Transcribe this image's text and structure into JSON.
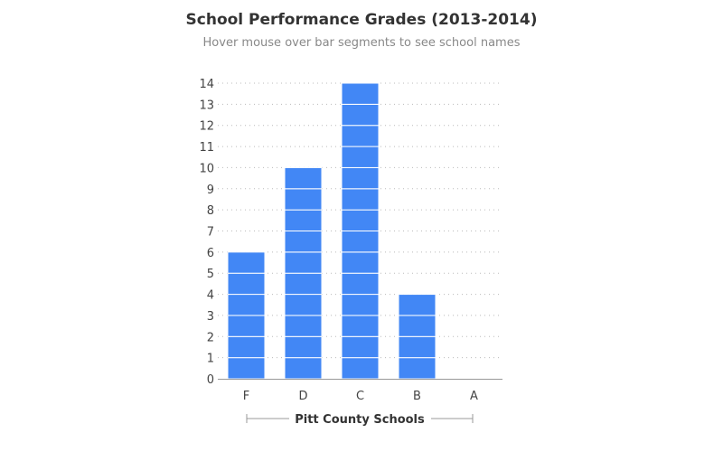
{
  "chart_data": {
    "type": "bar",
    "title": "School Performance Grades (2013-2014)",
    "subtitle": "Hover mouse over bar segments to see school names",
    "xlabel": "Pitt County Schools",
    "ylabel": "",
    "categories": [
      "F",
      "D",
      "C",
      "B",
      "A"
    ],
    "values": [
      6,
      10,
      14,
      4,
      0
    ],
    "ylim": [
      0,
      14
    ],
    "yticks": [
      0,
      1,
      2,
      3,
      4,
      5,
      6,
      7,
      8,
      9,
      10,
      11,
      12,
      13,
      14
    ],
    "grid": true,
    "bar_color": "#4287f5",
    "segment_note": "each bar is stacked from 1-unit segments, one per school"
  }
}
